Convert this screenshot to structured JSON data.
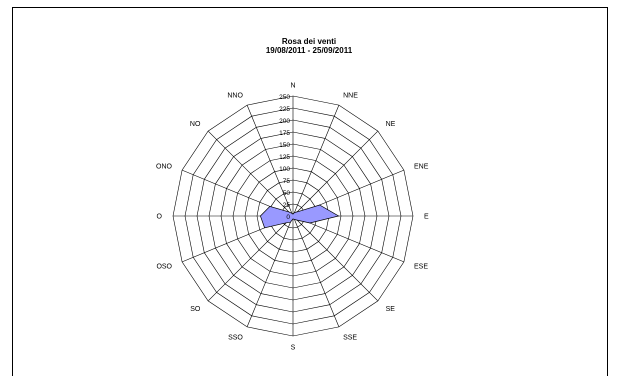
{
  "chart_data": {
    "type": "radar",
    "title": "Rosa dei venti",
    "subtitle": "19/08/2011 - 25/09/2011",
    "directions": [
      "N",
      "NNE",
      "NE",
      "ENE",
      "E",
      "ESE",
      "SE",
      "SSE",
      "S",
      "SSO",
      "SO",
      "OSO",
      "O",
      "ONO",
      "NO",
      "NNO"
    ],
    "values": [
      4,
      8,
      12,
      60,
      95,
      38,
      12,
      8,
      6,
      14,
      20,
      64,
      68,
      52,
      12,
      6
    ],
    "rlim": [
      0,
      250
    ],
    "rticks": [
      0,
      25,
      50,
      75,
      100,
      125,
      150,
      175,
      200,
      225,
      250
    ],
    "rtick_labels": [
      "0",
      "25",
      "50",
      "75",
      "100",
      "125",
      "150",
      "175",
      "200",
      "225",
      "250"
    ],
    "fill_color": "#9999ff",
    "grid": true
  }
}
